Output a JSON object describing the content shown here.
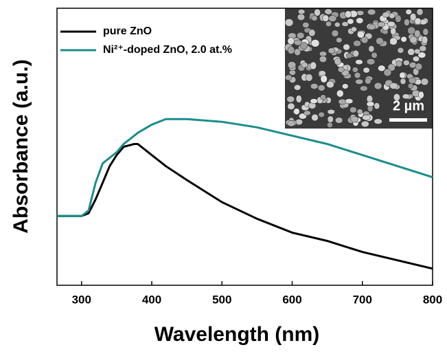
{
  "chart_data": {
    "type": "line",
    "xlabel": "Wavelength (nm)",
    "ylabel": "Absorbance (a.u.)",
    "x": [
      265,
      280,
      300,
      310,
      320,
      330,
      340,
      350,
      360,
      375,
      380,
      400,
      420,
      450,
      500,
      550,
      600,
      650,
      700,
      750,
      800
    ],
    "series": [
      {
        "name": "pure ZnO",
        "color": "#000000",
        "values": [
          0.25,
          0.25,
          0.25,
          0.26,
          0.31,
          0.37,
          0.43,
          0.47,
          0.5,
          0.51,
          0.51,
          0.47,
          0.43,
          0.38,
          0.3,
          0.24,
          0.19,
          0.16,
          0.12,
          0.09,
          0.06
        ]
      },
      {
        "name": "Ni²⁺-doped ZnO, 2.0 at.%",
        "color": "#1a8c8c",
        "values": [
          0.25,
          0.25,
          0.25,
          0.27,
          0.37,
          0.44,
          0.46,
          0.48,
          0.51,
          0.54,
          0.55,
          0.58,
          0.6,
          0.6,
          0.59,
          0.57,
          0.54,
          0.51,
          0.47,
          0.43,
          0.39
        ]
      }
    ],
    "xlim": [
      265,
      800
    ],
    "xticks": [
      300,
      400,
      500,
      600,
      700,
      800
    ],
    "ylim": [
      0,
      1
    ],
    "inset_scale_label": "2 µm"
  }
}
